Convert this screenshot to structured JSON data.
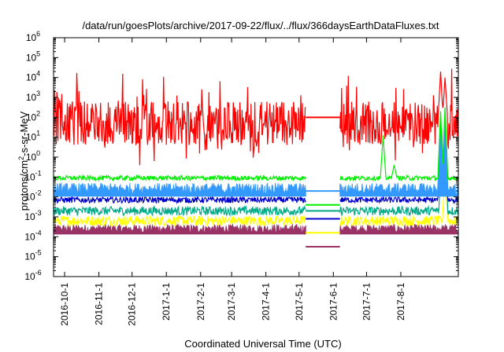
{
  "chart_data": {
    "type": "line",
    "title": "/data/run/goesPlots/archive/2017-09-22/flux/../flux/366daysEarthDataFluxes.txt",
    "xlabel": "Coordinated Universal Time (UTC)",
    "ylabel": {
      "base": "protons/cm",
      "sup": "2",
      "rest": "-s-sr-MeV"
    },
    "yscale": "log",
    "ylim_exp": [
      -6,
      6
    ],
    "y_ticks": [
      {
        "base": "10",
        "exp": "-6"
      },
      {
        "base": "10",
        "exp": "-5"
      },
      {
        "base": "10",
        "exp": "-4"
      },
      {
        "base": "10",
        "exp": "-3"
      },
      {
        "base": "10",
        "exp": "-2"
      },
      {
        "base": "10",
        "exp": "-1"
      },
      {
        "base": "10",
        "exp": "0"
      },
      {
        "base": "10",
        "exp": "1"
      },
      {
        "base": "10",
        "exp": "2"
      },
      {
        "base": "10",
        "exp": "3"
      },
      {
        "base": "10",
        "exp": "4"
      },
      {
        "base": "10",
        "exp": "5"
      },
      {
        "base": "10",
        "exp": "6"
      }
    ],
    "xlim": [
      "2016-09-21",
      "2017-09-22"
    ],
    "x_ticks": [
      {
        "date": "2016-10-01",
        "label": "2016-10-1"
      },
      {
        "date": "2016-11-01",
        "label": "2016-11-1"
      },
      {
        "date": "2016-12-01",
        "label": "2016-12-1"
      },
      {
        "date": "2017-01-01",
        "label": "2017-1-1"
      },
      {
        "date": "2017-02-01",
        "label": "2017-2-1"
      },
      {
        "date": "2017-03-01",
        "label": "2017-3-1"
      },
      {
        "date": "2017-04-01",
        "label": "2017-4-1"
      },
      {
        "date": "2017-05-01",
        "label": "2017-5-1"
      },
      {
        "date": "2017-06-01",
        "label": "2017-6-1"
      },
      {
        "date": "2017-07-01",
        "label": "2017-7-1"
      },
      {
        "date": "2017-08-01",
        "label": "2017-8-1"
      }
    ],
    "data_gap": [
      "2017-05-07",
      "2017-06-07"
    ],
    "legend": "none",
    "grid": false,
    "series": [
      {
        "color": "#993366",
        "fill": true,
        "baseline_log": -3.6,
        "spread": 0.22,
        "gap_log": -4.5,
        "events": []
      },
      {
        "color": "#ffff00",
        "baseline_log": -3.2,
        "spread": 0.25,
        "gap_log": -3.8,
        "events": [
          {
            "date": "2017-09-10",
            "log": -1.0
          }
        ]
      },
      {
        "color": "#00aa88",
        "baseline_log": -2.7,
        "spread": 0.22,
        "gap_log": -2.7,
        "events": [
          {
            "date": "2017-09-07",
            "log": 1.4
          },
          {
            "date": "2017-09-10",
            "log": 1.5
          }
        ]
      },
      {
        "color": "#0000cc",
        "baseline_log": -2.15,
        "spread": 0.15,
        "gap_log": -3.1,
        "events": [
          {
            "date": "2017-09-06",
            "log": 2.0
          },
          {
            "date": "2017-09-10",
            "log": 2.0
          }
        ]
      },
      {
        "color": "#3399ff",
        "fill": true,
        "baseline_log": -1.6,
        "spread": 0.3,
        "gap_log": -1.7,
        "events": [
          {
            "date": "2017-09-06",
            "log": 1.8
          },
          {
            "date": "2017-09-10",
            "log": 1.9
          }
        ]
      },
      {
        "color": "#00ee00",
        "baseline_log": -1.05,
        "spread": 0.12,
        "gap_log": -2.4,
        "events": [
          {
            "date": "2017-07-16",
            "log": 1.1
          },
          {
            "date": "2017-07-26",
            "log": -0.4
          },
          {
            "date": "2017-09-06",
            "log": 2.3
          },
          {
            "date": "2017-09-10",
            "log": 2.5
          }
        ]
      },
      {
        "color": "#ff0000",
        "baseline_log": 1.7,
        "spread": 1.1,
        "gap_log": 2.0,
        "events": [
          {
            "date": "2017-09-06",
            "log": 4.3
          },
          {
            "date": "2017-09-10",
            "log": 4.0
          }
        ]
      }
    ]
  }
}
